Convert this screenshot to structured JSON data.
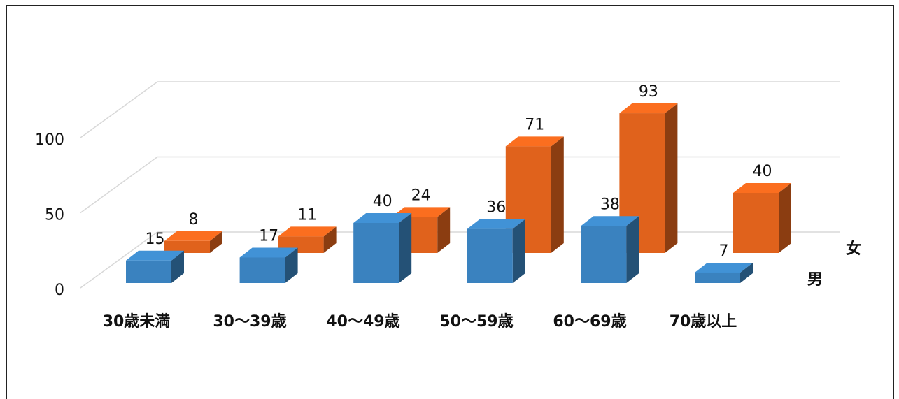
{
  "chart_data": {
    "type": "bar3d",
    "categories": [
      "30歳未満",
      "30～39歳",
      "40～49歳",
      "50～59歳",
      "60～69歳",
      "70歳以上"
    ],
    "series": [
      {
        "name": "男",
        "color": "#3a82bf",
        "values": [
          15,
          17,
          40,
          36,
          38,
          7
        ]
      },
      {
        "name": "女",
        "color": "#e0621c",
        "values": [
          8,
          11,
          24,
          71,
          93,
          40
        ]
      }
    ],
    "ylim": [
      0,
      100
    ],
    "yticks": [
      0,
      50,
      100
    ],
    "grid": true
  }
}
